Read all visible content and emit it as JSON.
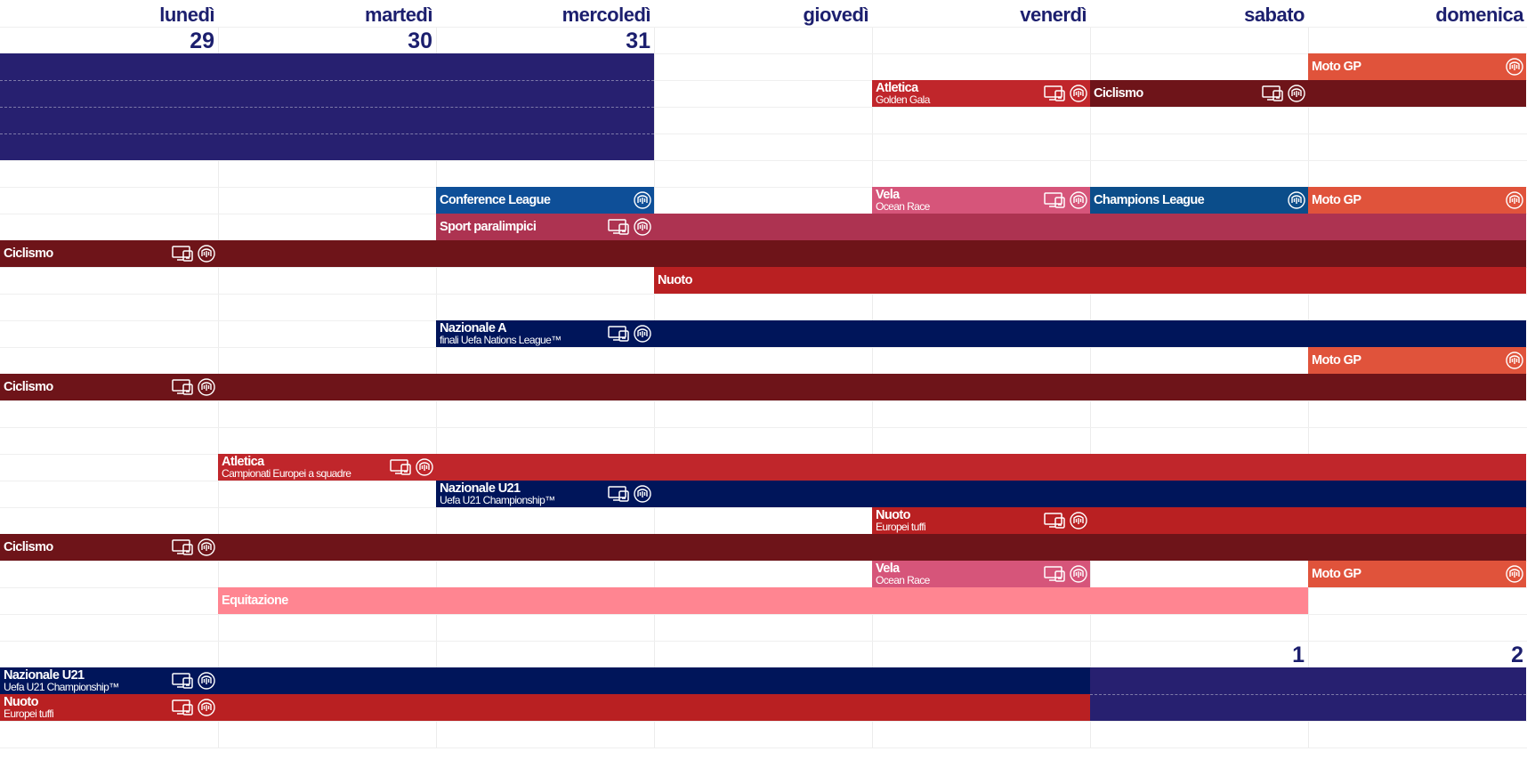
{
  "days": [
    "lunedì",
    "martedì",
    "mercoledì",
    "giovedì",
    "venerdì",
    "sabato",
    "domenica"
  ],
  "date_numbers": [
    {
      "label": "29",
      "col": 0,
      "row": 0
    },
    {
      "label": "30",
      "col": 1,
      "row": 0
    },
    {
      "label": "31",
      "col": 2,
      "row": 0
    },
    {
      "label": "1",
      "col": 5,
      "row": 23
    },
    {
      "label": "2",
      "col": 6,
      "row": 23
    }
  ],
  "out_of_month_blocks": [
    {
      "col_start": 0,
      "col_end": 3,
      "row_start": 1,
      "row_end": 5
    },
    {
      "col_start": 5,
      "col_end": 7,
      "row_start": 24,
      "row_end": 26
    }
  ],
  "icons": {
    "tv": "tv-icon",
    "radio": "radio-icon",
    "motogp_radio": "radio-icon"
  },
  "colors": {
    "header_text": "#1c1f6e",
    "out_of_month": "#272070",
    "motogp": "#e0533b",
    "atletica": "#c0262b",
    "ciclismo": "#6e1419",
    "vela": "#d6557a",
    "champions": "#0b4d8a",
    "conference": "#0e4f98",
    "paralimpici": "#ad3351",
    "nuoto": "#b92022",
    "nazionale": "#00155a",
    "equitazione": "#ff8591"
  },
  "events": [
    {
      "title": "Moto GP",
      "sub": "",
      "color": "#e0533b",
      "row": 1,
      "col_start": 6,
      "col_end": 7,
      "icons": [
        "radio"
      ],
      "icon_col": 6
    },
    {
      "title": "Atletica",
      "sub": "Golden Gala",
      "color": "#c0262b",
      "row": 2,
      "col_start": 4,
      "col_end": 5,
      "icons": [
        "tv",
        "radio"
      ],
      "icon_col": 4
    },
    {
      "title": "Ciclismo",
      "sub": "",
      "color": "#6e1419",
      "row": 2,
      "col_start": 5,
      "col_end": 7,
      "icons": [
        "tv",
        "radio"
      ],
      "icon_col": 5
    },
    {
      "title": "Conference League",
      "sub": "",
      "color": "#0e4f98",
      "row": 6,
      "col_start": 2,
      "col_end": 3,
      "icons": [
        "radio"
      ],
      "icon_col": 2
    },
    {
      "title": "Vela",
      "sub": "Ocean Race",
      "color": "#d6557a",
      "row": 6,
      "col_start": 4,
      "col_end": 5,
      "icons": [
        "tv",
        "radio"
      ],
      "icon_col": 4
    },
    {
      "title": "Champions League",
      "sub": "",
      "color": "#0b4d8a",
      "row": 6,
      "col_start": 5,
      "col_end": 6,
      "icons": [
        "radio"
      ],
      "icon_col": 5
    },
    {
      "title": "Moto GP",
      "sub": "",
      "color": "#e0533b",
      "row": 6,
      "col_start": 6,
      "col_end": 7,
      "icons": [
        "radio"
      ],
      "icon_col": 6
    },
    {
      "title": "Sport paralimpici",
      "sub": "",
      "color": "#ad3351",
      "row": 7,
      "col_start": 2,
      "col_end": 7,
      "icons": [
        "tv",
        "radio"
      ],
      "icon_col": 2
    },
    {
      "title": "Ciclismo",
      "sub": "",
      "color": "#6e1419",
      "row": 8,
      "col_start": 0,
      "col_end": 7,
      "icons": [
        "tv",
        "radio"
      ],
      "icon_col": 0
    },
    {
      "title": "Nuoto",
      "sub": "",
      "color": "#b92022",
      "row": 9,
      "col_start": 3,
      "col_end": 7,
      "icons": [],
      "icon_col": 3
    },
    {
      "title": "Nazionale A",
      "sub": "finali Uefa Nations League™",
      "color": "#00155a",
      "row": 11,
      "col_start": 2,
      "col_end": 7,
      "icons": [
        "tv",
        "radio"
      ],
      "icon_col": 2
    },
    {
      "title": "Moto GP",
      "sub": "",
      "color": "#e0533b",
      "row": 12,
      "col_start": 6,
      "col_end": 7,
      "icons": [
        "radio"
      ],
      "icon_col": 6
    },
    {
      "title": "Ciclismo",
      "sub": "",
      "color": "#6e1419",
      "row": 13,
      "col_start": 0,
      "col_end": 7,
      "icons": [
        "tv",
        "radio"
      ],
      "icon_col": 0
    },
    {
      "title": "Atletica",
      "sub": "Campionati Europei a squadre",
      "color": "#c0262b",
      "row": 16,
      "col_start": 1,
      "col_end": 7,
      "icons": [
        "tv",
        "radio"
      ],
      "icon_col": 1
    },
    {
      "title": "Nazionale U21",
      "sub": "Uefa U21 Championship™",
      "color": "#00155a",
      "row": 17,
      "col_start": 2,
      "col_end": 7,
      "icons": [
        "tv",
        "radio"
      ],
      "icon_col": 2
    },
    {
      "title": "Nuoto",
      "sub": "Europei tuffi",
      "color": "#b92022",
      "row": 18,
      "col_start": 4,
      "col_end": 7,
      "icons": [
        "tv",
        "radio"
      ],
      "icon_col": 4
    },
    {
      "title": "Ciclismo",
      "sub": "",
      "color": "#6e1419",
      "row": 19,
      "col_start": 0,
      "col_end": 7,
      "icons": [
        "tv",
        "radio"
      ],
      "icon_col": 0
    },
    {
      "title": "Vela",
      "sub": "Ocean Race",
      "color": "#d6557a",
      "row": 20,
      "col_start": 4,
      "col_end": 5,
      "icons": [
        "tv",
        "radio"
      ],
      "icon_col": 4
    },
    {
      "title": "Moto GP",
      "sub": "",
      "color": "#e0533b",
      "row": 20,
      "col_start": 6,
      "col_end": 7,
      "icons": [
        "radio"
      ],
      "icon_col": 6
    },
    {
      "title": "Equitazione",
      "sub": "",
      "color": "#ff8591",
      "row": 21,
      "col_start": 1,
      "col_end": 6,
      "icons": [],
      "icon_col": 1
    },
    {
      "title": "Nazionale U21",
      "sub": "Uefa U21 Championship™",
      "color": "#00155a",
      "row": 24,
      "col_start": 0,
      "col_end": 5,
      "icons": [
        "tv",
        "radio"
      ],
      "icon_col": 0
    },
    {
      "title": "Nuoto",
      "sub": "Europei tuffi",
      "color": "#b92022",
      "row": 25,
      "col_start": 0,
      "col_end": 5,
      "icons": [
        "tv",
        "radio"
      ],
      "icon_col": 0
    }
  ]
}
